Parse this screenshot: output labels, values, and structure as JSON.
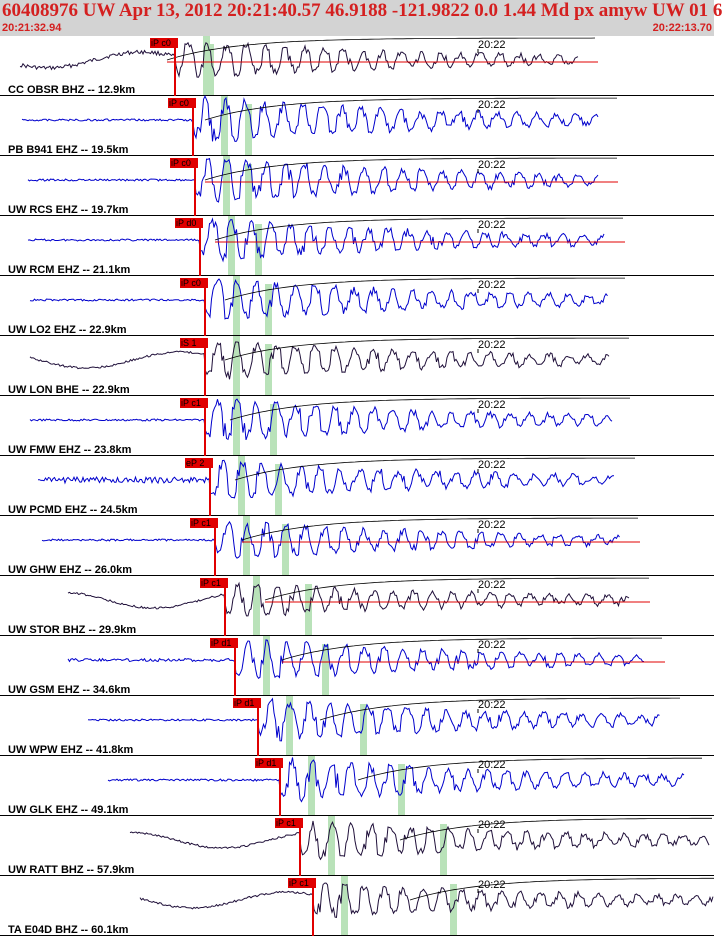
{
  "header": {
    "title": "60408976 UW Apr 13, 2012 20:21:40.57   46.9188 -121.9822  0.0 1.44 Md px amyw UW 01   6",
    "start_time": "20:21:32.94",
    "end_time": "20:22:13.70"
  },
  "colors": {
    "header_bg": "#d3d3d3",
    "header_text": "#d42020",
    "pick": "#e00000",
    "window_shade": "#b9e2b9",
    "trace_blue": "#0000cc",
    "trace_dark": "#20103a",
    "decay_curve": "#000000"
  },
  "minute_tick_label": "20:22",
  "traces": [
    {
      "label": "CC OBSR BHZ -- 12.9km",
      "phase": "iP c0",
      "color": "dark",
      "decay_level": true
    },
    {
      "label": "PB B941 EHZ -- 19.5km",
      "phase": "iP c0",
      "color": "blue",
      "decay_level": false
    },
    {
      "label": "UW RCS EHZ -- 19.7km",
      "phase": "iP c0",
      "color": "blue",
      "decay_level": true
    },
    {
      "label": "UW RCM EHZ -- 21.1km",
      "phase": "iP d0",
      "color": "blue",
      "decay_level": true
    },
    {
      "label": "UW LO2 EHZ -- 22.9km",
      "phase": "iP c0",
      "color": "blue",
      "decay_level": false
    },
    {
      "label": "UW LON BHE -- 22.9km",
      "phase": "iS 1",
      "color": "dark",
      "decay_level": false
    },
    {
      "label": "UW FMW EHZ -- 23.8km",
      "phase": "iP c1",
      "color": "blue",
      "decay_level": false
    },
    {
      "label": "UW PCMD EHZ -- 24.5km",
      "phase": "eP 2",
      "color": "blue",
      "decay_level": false
    },
    {
      "label": "UW GHW EHZ -- 26.0km",
      "phase": "iP c1",
      "color": "blue",
      "decay_level": true
    },
    {
      "label": "UW STOR BHZ -- 29.9km",
      "phase": "iP c1",
      "color": "dark",
      "decay_level": true
    },
    {
      "label": "UW GSM EHZ -- 34.6km",
      "phase": "iP d1",
      "color": "blue",
      "decay_level": true
    },
    {
      "label": "UW WPW EHZ -- 41.8km",
      "phase": "iP d1",
      "color": "blue",
      "decay_level": false
    },
    {
      "label": "UW GLK EHZ -- 49.1km",
      "phase": "iP d1",
      "color": "blue",
      "decay_level": false
    },
    {
      "label": "UW RATT BHZ -- 57.9km",
      "phase": "iP c1",
      "color": "dark",
      "decay_level": false
    },
    {
      "label": "TA E04D BHZ -- 60.1km",
      "phase": "iP c1",
      "color": "dark",
      "decay_level": false
    }
  ]
}
